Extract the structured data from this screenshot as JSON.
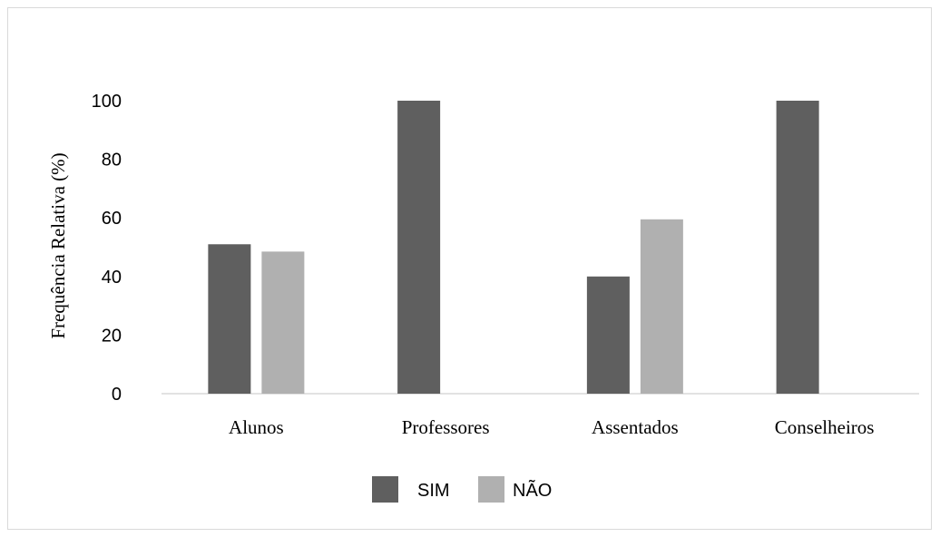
{
  "chart_data": {
    "type": "bar",
    "title": "",
    "xlabel": "",
    "ylabel": "Frequência Relativa (%)",
    "categories": [
      "Alunos",
      "Professores",
      "Assentados",
      "Conselheiros"
    ],
    "series": [
      {
        "name": "SIM",
        "values": [
          51,
          100,
          40,
          100
        ],
        "color": "#5f5f5f"
      },
      {
        "name": "NÃO",
        "values": [
          48.5,
          0,
          59.5,
          0
        ],
        "color": "#b0b0b0"
      }
    ],
    "yticks": [
      "0",
      "20",
      "40",
      "60",
      "80",
      "100"
    ],
    "ylim": [
      0,
      100
    ],
    "grid": false,
    "legend_position": "bottom"
  }
}
